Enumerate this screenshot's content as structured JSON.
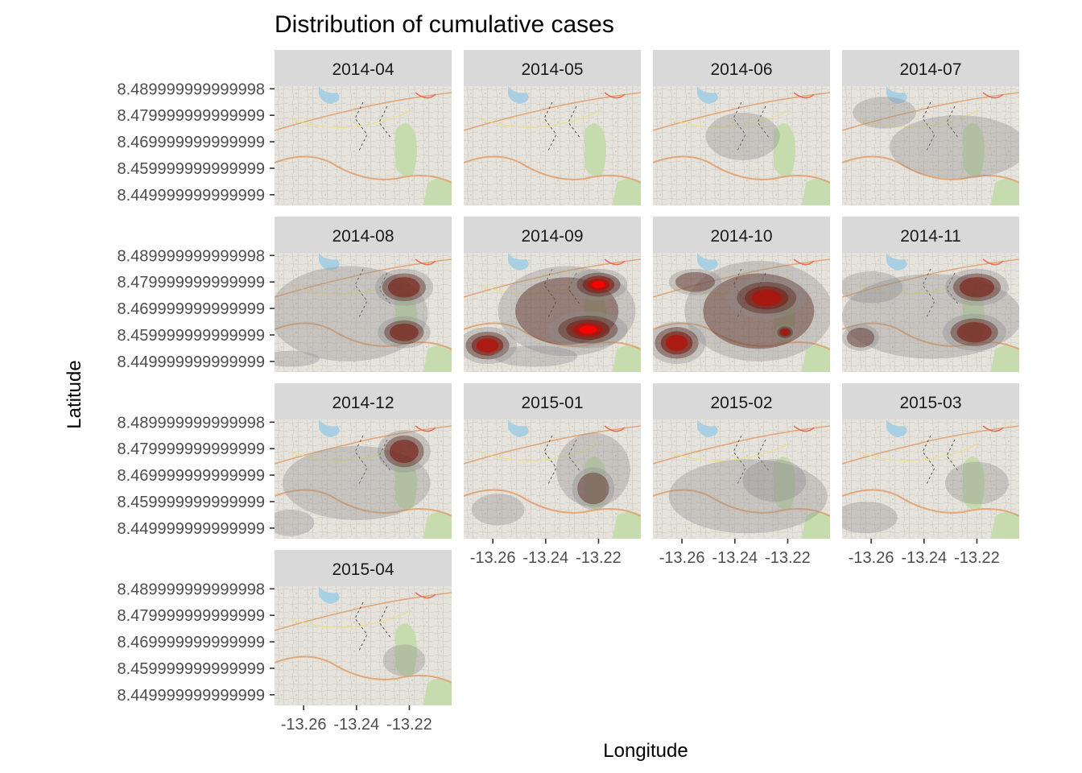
{
  "chart_data": {
    "type": "heatmap",
    "subtype": "faceted 2D density over map tiles",
    "title": "Distribution of cumulative cases",
    "xlabel": "Longitude",
    "ylabel": "Latitude",
    "x_ticks": [
      -13.26,
      -13.24,
      -13.22
    ],
    "x_tick_labels": [
      "-13.26",
      "-13.24",
      "-13.22"
    ],
    "y_ticks": [
      8.489999999999998,
      8.479999999999999,
      8.469999999999999,
      8.459999999999999,
      8.45
    ],
    "y_tick_labels": [
      "8.489999999999998",
      "8.479999999999999",
      "8.469999999999999",
      "8.459999999999999",
      "8.449999999999999"
    ],
    "xlim": [
      -13.271,
      -13.204
    ],
    "ylim": [
      8.446,
      8.491
    ],
    "fill_colors": {
      "low": "#9e9e9e",
      "mid": "#7a1b12",
      "high": "#ff0000"
    },
    "facets": [
      {
        "label": "2014-04",
        "blobs": []
      },
      {
        "label": "2014-05",
        "blobs": []
      },
      {
        "label": "2014-06",
        "blobs": [
          {
            "lon": -13.237,
            "lat": 8.472,
            "rx": 0.014,
            "ry": 0.009,
            "level": 1
          }
        ]
      },
      {
        "label": "2014-07",
        "blobs": [
          {
            "lon": -13.227,
            "lat": 8.468,
            "rx": 0.026,
            "ry": 0.012,
            "level": 1
          },
          {
            "lon": -13.255,
            "lat": 8.481,
            "rx": 0.012,
            "ry": 0.006,
            "level": 1
          }
        ]
      },
      {
        "label": "2014-08",
        "blobs": [
          {
            "lon": -13.243,
            "lat": 8.468,
            "rx": 0.03,
            "ry": 0.018,
            "level": 1
          },
          {
            "lon": -13.222,
            "lat": 8.478,
            "rx": 0.011,
            "ry": 0.007,
            "level": 3
          },
          {
            "lon": -13.222,
            "lat": 8.461,
            "rx": 0.01,
            "ry": 0.006,
            "level": 3
          },
          {
            "lon": -13.265,
            "lat": 8.451,
            "rx": 0.011,
            "ry": 0.003,
            "level": 1
          }
        ]
      },
      {
        "label": "2014-09",
        "blobs": [
          {
            "lon": -13.232,
            "lat": 8.469,
            "rx": 0.026,
            "ry": 0.017,
            "level": 2
          },
          {
            "lon": -13.224,
            "lat": 8.462,
            "rx": 0.015,
            "ry": 0.007,
            "level": 5
          },
          {
            "lon": -13.22,
            "lat": 8.479,
            "rx": 0.011,
            "ry": 0.006,
            "level": 5
          },
          {
            "lon": -13.262,
            "lat": 8.456,
            "rx": 0.011,
            "ry": 0.007,
            "level": 4
          },
          {
            "lon": -13.244,
            "lat": 8.452,
            "rx": 0.016,
            "ry": 0.004,
            "level": 1
          }
        ]
      },
      {
        "label": "2014-10",
        "blobs": [
          {
            "lon": -13.231,
            "lat": 8.469,
            "rx": 0.028,
            "ry": 0.019,
            "level": 2
          },
          {
            "lon": -13.228,
            "lat": 8.474,
            "rx": 0.015,
            "ry": 0.008,
            "level": 4
          },
          {
            "lon": -13.262,
            "lat": 8.457,
            "rx": 0.011,
            "ry": 0.008,
            "level": 4
          },
          {
            "lon": -13.255,
            "lat": 8.48,
            "rx": 0.01,
            "ry": 0.005,
            "level": 2
          },
          {
            "lon": -13.221,
            "lat": 8.461,
            "rx": 0.004,
            "ry": 0.003,
            "level": 4
          }
        ]
      },
      {
        "label": "2014-11",
        "blobs": [
          {
            "lon": -13.237,
            "lat": 8.467,
            "rx": 0.034,
            "ry": 0.016,
            "level": 1
          },
          {
            "lon": -13.22,
            "lat": 8.478,
            "rx": 0.012,
            "ry": 0.007,
            "level": 3
          },
          {
            "lon": -13.221,
            "lat": 8.461,
            "rx": 0.012,
            "ry": 0.007,
            "level": 3
          },
          {
            "lon": -13.264,
            "lat": 8.459,
            "rx": 0.007,
            "ry": 0.005,
            "level": 2
          },
          {
            "lon": -13.26,
            "lat": 8.478,
            "rx": 0.012,
            "ry": 0.006,
            "level": 1
          }
        ]
      },
      {
        "label": "2014-12",
        "blobs": [
          {
            "lon": -13.24,
            "lat": 8.467,
            "rx": 0.028,
            "ry": 0.014,
            "level": 1
          },
          {
            "lon": -13.222,
            "lat": 8.479,
            "rx": 0.01,
            "ry": 0.008,
            "level": 3
          },
          {
            "lon": -13.265,
            "lat": 8.452,
            "rx": 0.009,
            "ry": 0.005,
            "level": 1
          }
        ]
      },
      {
        "label": "2015-01",
        "blobs": [
          {
            "lon": -13.222,
            "lat": 8.472,
            "rx": 0.014,
            "ry": 0.014,
            "level": 1
          },
          {
            "lon": -13.222,
            "lat": 8.465,
            "rx": 0.008,
            "ry": 0.008,
            "level": 2
          },
          {
            "lon": -13.258,
            "lat": 8.457,
            "rx": 0.01,
            "ry": 0.006,
            "level": 1
          }
        ]
      },
      {
        "label": "2015-02",
        "blobs": [
          {
            "lon": -13.235,
            "lat": 8.462,
            "rx": 0.03,
            "ry": 0.014,
            "level": 1
          },
          {
            "lon": -13.225,
            "lat": 8.468,
            "rx": 0.012,
            "ry": 0.008,
            "level": 1
          }
        ]
      },
      {
        "label": "2015-03",
        "blobs": [
          {
            "lon": -13.262,
            "lat": 8.454,
            "rx": 0.012,
            "ry": 0.006,
            "level": 1
          },
          {
            "lon": -13.22,
            "lat": 8.467,
            "rx": 0.012,
            "ry": 0.008,
            "level": 1
          }
        ]
      },
      {
        "label": "2015-04",
        "blobs": [
          {
            "lon": -13.222,
            "lat": 8.463,
            "rx": 0.008,
            "ry": 0.006,
            "level": 1
          }
        ]
      }
    ]
  }
}
